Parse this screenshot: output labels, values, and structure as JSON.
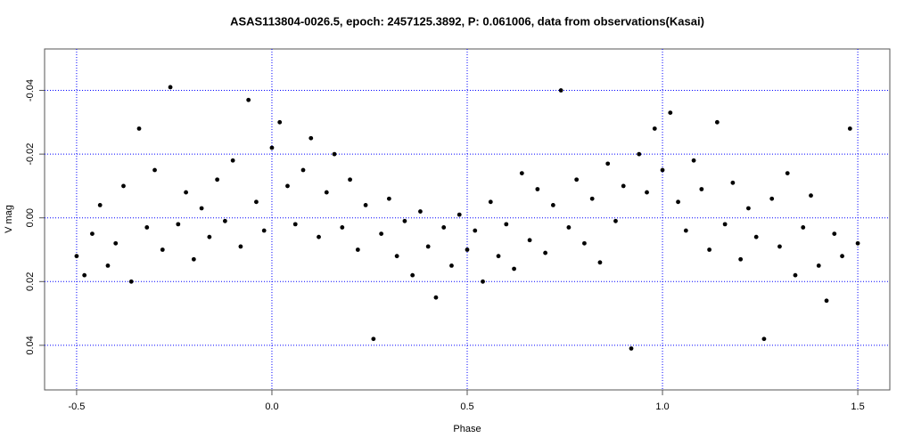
{
  "chart_data": {
    "type": "scatter",
    "title": "ASAS113804-0026.5, epoch: 2457125.3892, P: 0.061006, data from observations(Kasai)",
    "x_label": "Phase",
    "y_label": "V mag",
    "xlim": [
      -0.582,
      1.582
    ],
    "ylim": [
      -0.053,
      0.054
    ],
    "y_reversed": true,
    "xticks": [
      -0.5,
      {
        "value": 0,
        "label": "0.0"
      },
      0.5,
      {
        "value": 1,
        "label": "1.0"
      },
      1.5
    ],
    "yticks": [
      -0.04,
      -0.02,
      {
        "value": 0,
        "label": "0.00"
      },
      0.02,
      0.04
    ],
    "grid": true,
    "grid_color": "#0000ff",
    "series": [
      {
        "color": "#000000",
        "x": [
          -0.5,
          -0.48,
          -0.46,
          -0.44,
          -0.42,
          -0.4,
          -0.38,
          -0.36,
          -0.34,
          -0.32,
          -0.3,
          -0.28,
          -0.26,
          -0.24,
          -0.22,
          -0.2,
          -0.18,
          -0.16,
          -0.14,
          -0.12,
          -0.1,
          -0.08,
          -0.06,
          -0.04,
          -0.02,
          0,
          0.02,
          0.04,
          0.06,
          0.08,
          0.1,
          0.12,
          0.14,
          0.16,
          0.18,
          0.2,
          0.22,
          0.24,
          0.26,
          0.28,
          0.3,
          0.32,
          0.34,
          0.36,
          0.38,
          0.4,
          0.42,
          0.44,
          0.46,
          0.48,
          0.5,
          0.52,
          0.54,
          0.56,
          0.58,
          0.6,
          0.62,
          0.64,
          0.66,
          0.68,
          0.7,
          0.72,
          0.74,
          0.76,
          0.78,
          0.8,
          0.82,
          0.84,
          0.86,
          0.88,
          0.9,
          0.92,
          0.94,
          0.96,
          0.98,
          1,
          1.02,
          1.04,
          1.06,
          1.08,
          1.1,
          1.12,
          1.14,
          1.16,
          1.18,
          1.2,
          1.22,
          1.24,
          1.26,
          1.28,
          1.3,
          1.32,
          1.34,
          1.36,
          1.38,
          1.4,
          1.42,
          1.44,
          1.46,
          1.48,
          1.5
        ],
        "values": [
          0.012,
          0.018,
          0.005,
          -0.004,
          0.015,
          0.008,
          -0.01,
          0.02,
          -0.028,
          0.003,
          -0.015,
          0.01,
          -0.041,
          0.002,
          -0.008,
          0.013,
          -0.003,
          0.006,
          -0.012,
          0.001,
          -0.018,
          0.009,
          -0.037,
          -0.005,
          0.004,
          -0.022,
          -0.03,
          -0.01,
          0.002,
          -0.015,
          -0.025,
          0.006,
          -0.008,
          -0.02,
          0.003,
          -0.012,
          0.01,
          -0.004,
          0.038,
          0.005,
          -0.006,
          0.012,
          0.001,
          0.018,
          -0.002,
          0.009,
          0.025,
          0.003,
          0.015,
          -0.001,
          0.01,
          0.004,
          0.02,
          -0.005,
          0.012,
          0.002,
          0.016,
          -0.014,
          0.007,
          -0.009,
          0.011,
          -0.004,
          -0.04,
          0.003,
          -0.012,
          0.008,
          -0.006,
          0.014,
          -0.017,
          0.001,
          -0.01,
          0.041,
          -0.02,
          -0.008,
          -0.028,
          -0.015,
          -0.033,
          -0.005,
          0.004,
          -0.018,
          -0.009,
          0.01,
          -0.03,
          0.002,
          -0.011,
          0.013,
          -0.003,
          0.006,
          0.038,
          -0.006,
          0.009,
          -0.014,
          0.018,
          0.003,
          -0.007,
          0.015,
          0.026,
          0.005,
          0.012,
          -0.028,
          0.008
        ]
      }
    ]
  }
}
